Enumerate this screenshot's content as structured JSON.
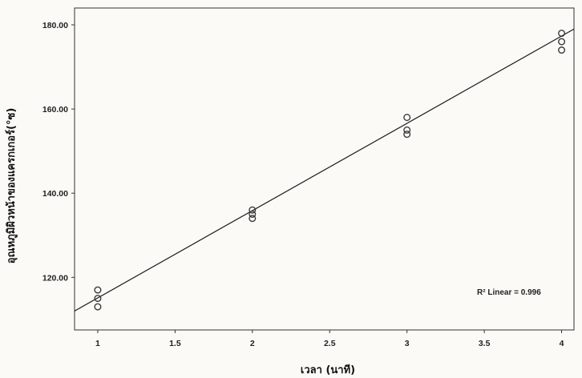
{
  "chart_data": {
    "type": "scatter",
    "xlabel": "เวลา (นาที)",
    "ylabel": "อุณหภูมิผิวหน้าของแครกเกอร์(°ซ)",
    "xlim": [
      0.85,
      4.08
    ],
    "ylim": [
      107.5,
      184
    ],
    "x_ticks": [
      1,
      1.5,
      2,
      2.5,
      3,
      3.5,
      4
    ],
    "x_tick_labels": [
      "1",
      "1.5",
      "2",
      "2.5",
      "3",
      "3.5",
      "4"
    ],
    "y_ticks": [
      120,
      140,
      160,
      180
    ],
    "y_tick_labels": [
      "120.00",
      "140.00",
      "160.00",
      "180.00"
    ],
    "points": [
      {
        "x": 1,
        "y": 117
      },
      {
        "x": 1,
        "y": 115
      },
      {
        "x": 1,
        "y": 113
      },
      {
        "x": 2,
        "y": 136
      },
      {
        "x": 2,
        "y": 135
      },
      {
        "x": 2,
        "y": 134
      },
      {
        "x": 3,
        "y": 158
      },
      {
        "x": 3,
        "y": 155
      },
      {
        "x": 3,
        "y": 154
      },
      {
        "x": 4,
        "y": 178
      },
      {
        "x": 4,
        "y": 176
      },
      {
        "x": 4,
        "y": 174
      }
    ],
    "fit_line": {
      "x": [
        0.85,
        4.08
      ],
      "y": [
        112,
        179
      ]
    },
    "annotation": "R² Linear = 0.996",
    "grid": false,
    "colors": {
      "points": "#3a3a3a",
      "line": "#1a1a1a",
      "axis": "#333333",
      "background": "#fbfaf6"
    }
  }
}
